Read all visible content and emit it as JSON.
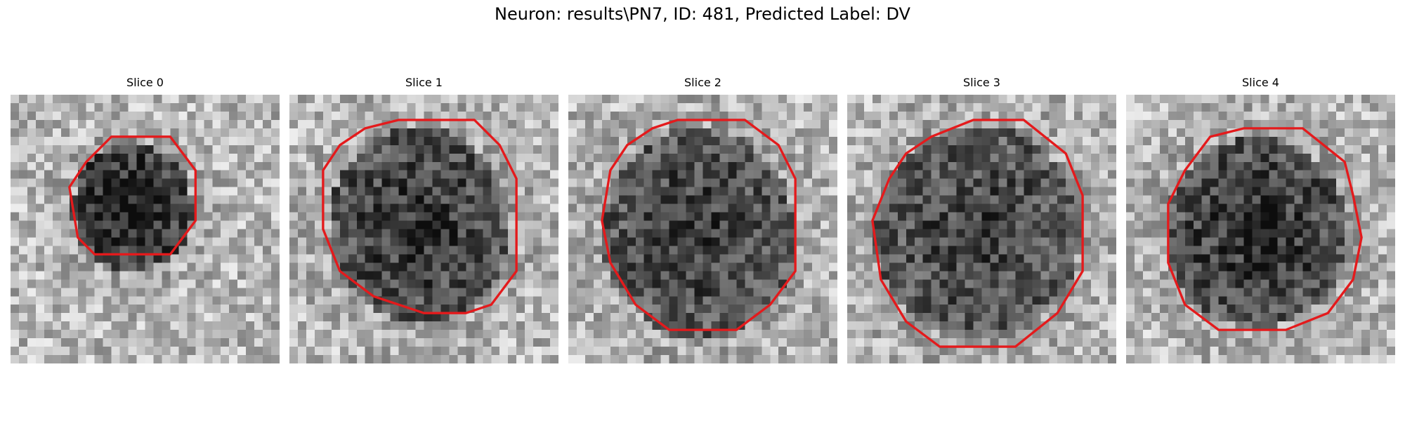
{
  "figure": {
    "title": "Neuron: results\\PN7, ID: 481, Predicted Label: DV"
  },
  "slices": [
    {
      "title": "Slice 0"
    },
    {
      "title": "Slice 1"
    },
    {
      "title": "Slice 2"
    },
    {
      "title": "Slice 3"
    },
    {
      "title": "Slice 4"
    }
  ],
  "colors": {
    "contour": "#e41a1c",
    "background": "#ffffff"
  }
}
